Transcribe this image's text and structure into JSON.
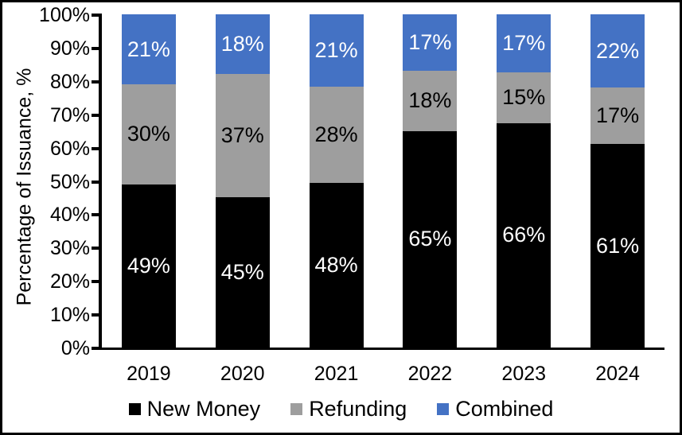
{
  "chart_data": {
    "type": "bar",
    "stacked": true,
    "orientation": "vertical",
    "title": "",
    "xlabel": "",
    "ylabel": "Percentage of Issuance, %",
    "ylim": [
      0,
      100
    ],
    "yticks": [
      "0%",
      "10%",
      "20%",
      "30%",
      "40%",
      "50%",
      "60%",
      "70%",
      "80%",
      "90%",
      "100%"
    ],
    "grid": false,
    "legend_position": "bottom",
    "data_label_suffix": "%",
    "categories": [
      "2019",
      "2020",
      "2021",
      "2022",
      "2023",
      "2024"
    ],
    "series": [
      {
        "name": "New Money",
        "color": "#000000",
        "label_color": "#ffffff",
        "values": [
          49,
          45,
          48,
          65,
          66,
          61
        ]
      },
      {
        "name": "Refunding",
        "color": "#9e9e9e",
        "label_color": "#000000",
        "values": [
          30,
          37,
          28,
          18,
          15,
          17
        ]
      },
      {
        "name": "Combined",
        "color": "#4472c4",
        "label_color": "#ffffff",
        "values": [
          21,
          18,
          21,
          17,
          17,
          22
        ]
      }
    ]
  }
}
